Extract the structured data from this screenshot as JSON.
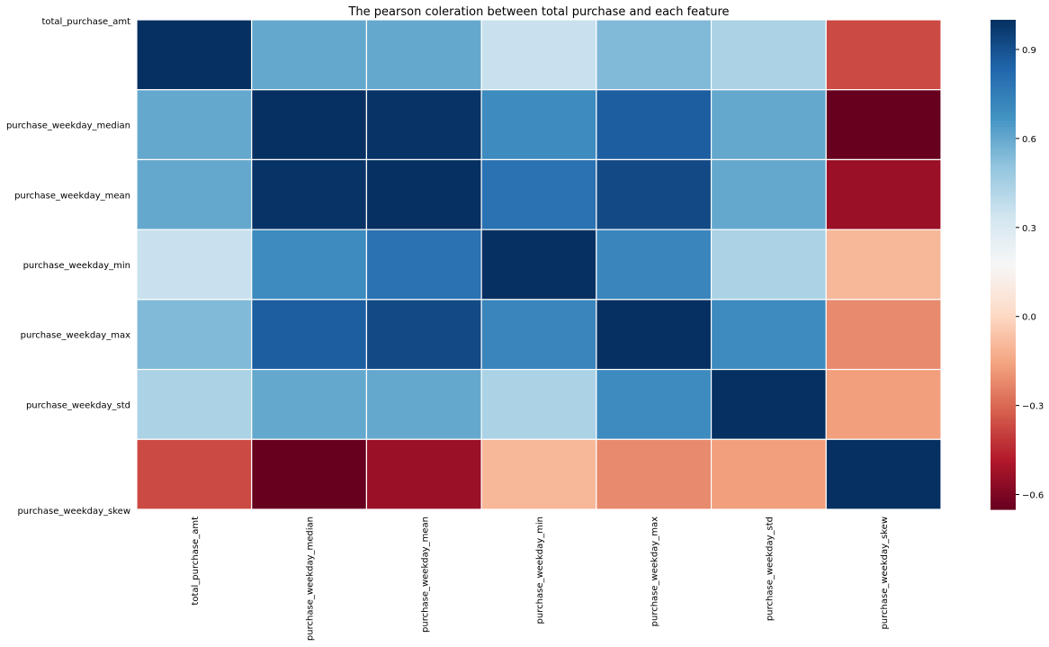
{
  "chart_data": {
    "type": "heatmap",
    "title": "The pearson coleration between total purchase and each feature",
    "rows": [
      "total_purchase_amt",
      "purchase_weekday_median",
      "purchase_weekday_mean",
      "purchase_weekday_min",
      "purchase_weekday_max",
      "purchase_weekday_std",
      "purchase_weekday_skew"
    ],
    "columns": [
      "total_purchase_amt",
      "purchase_weekday_median",
      "purchase_weekday_mean",
      "purchase_weekday_min",
      "purchase_weekday_max",
      "purchase_weekday_std",
      "purchase_weekday_skew"
    ],
    "values": [
      [
        1.0,
        0.6,
        0.6,
        0.36,
        0.54,
        0.44,
        -0.37
      ],
      [
        0.6,
        1.0,
        0.99,
        0.7,
        0.86,
        0.6,
        -0.65
      ],
      [
        0.6,
        0.99,
        1.0,
        0.79,
        0.92,
        0.6,
        -0.54
      ],
      [
        0.36,
        0.7,
        0.79,
        1.0,
        0.72,
        0.44,
        -0.1
      ],
      [
        0.54,
        0.86,
        0.92,
        0.72,
        1.0,
        0.7,
        -0.22
      ],
      [
        0.44,
        0.6,
        0.6,
        0.44,
        0.7,
        1.0,
        -0.17
      ],
      [
        -0.37,
        -0.65,
        -0.54,
        -0.1,
        -0.22,
        -0.17,
        1.0
      ]
    ],
    "colorbar": {
      "vmin": -0.65,
      "vmax": 1.0,
      "ticks": [
        "0.9",
        "0.6",
        "0.3",
        "0.0",
        "−0.3",
        "−0.6"
      ],
      "tick_values": [
        0.9,
        0.6,
        0.3,
        0.0,
        -0.3,
        -0.6
      ],
      "colormap": "RdBu"
    }
  }
}
